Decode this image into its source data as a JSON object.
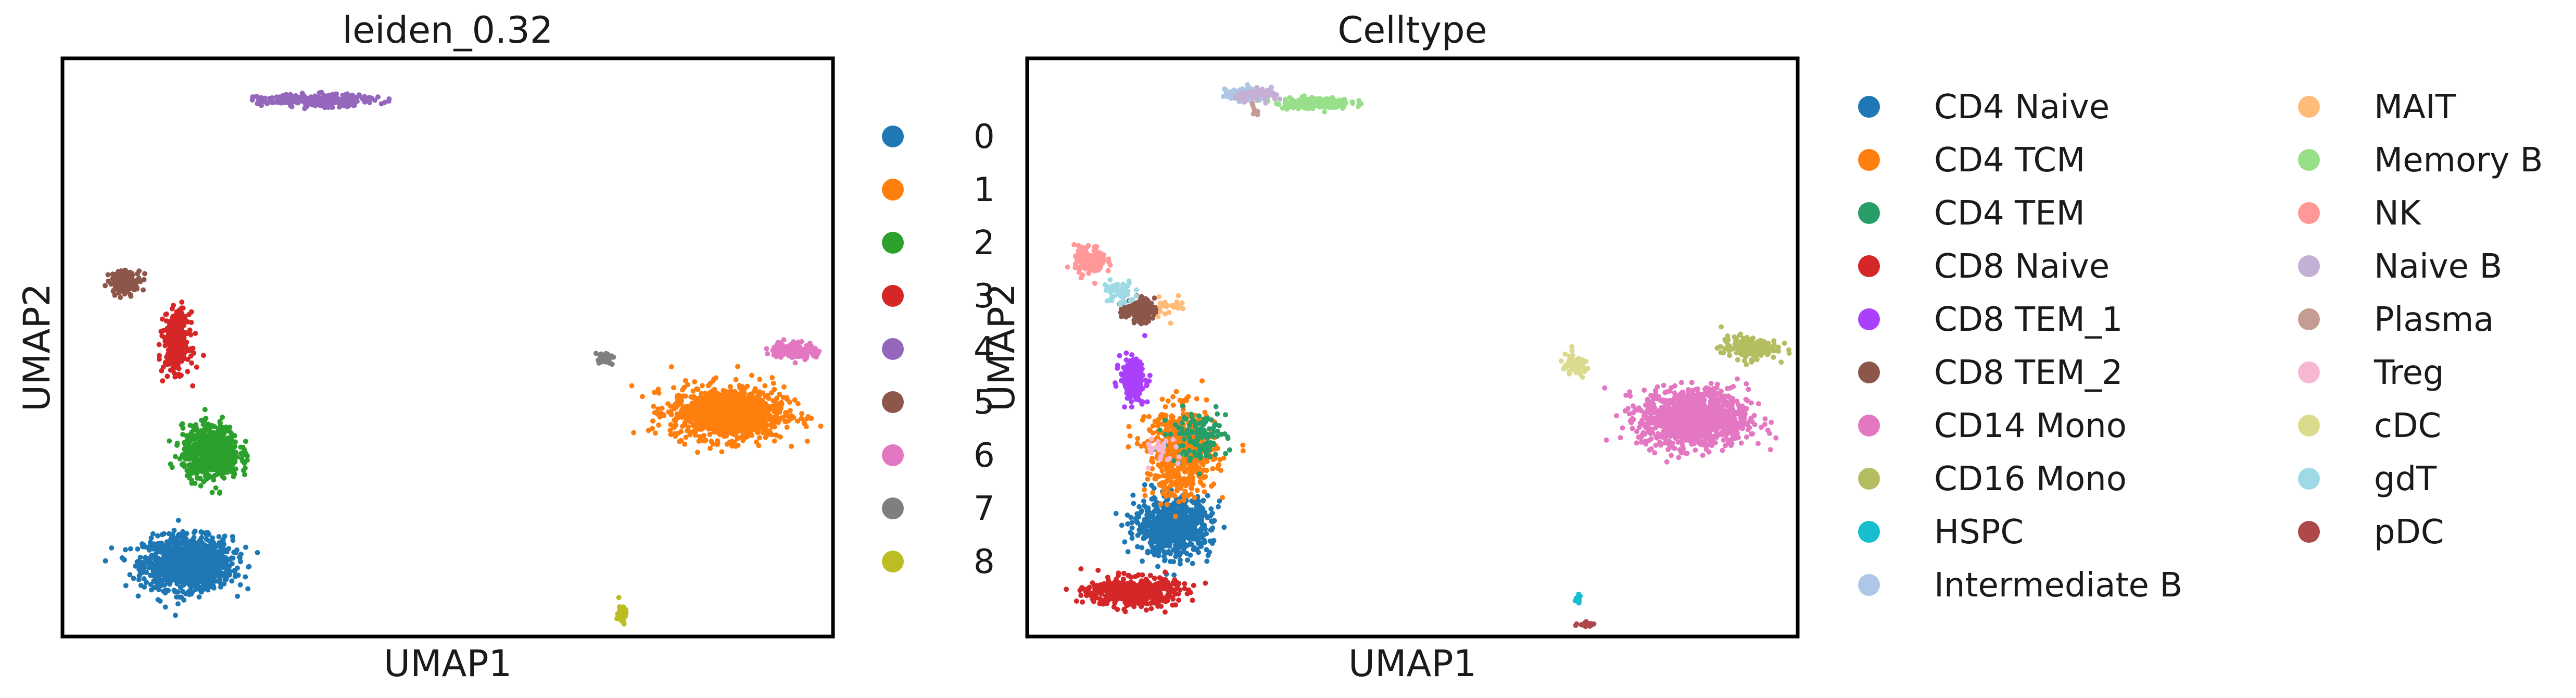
{
  "chart_data": [
    {
      "type": "scatter",
      "title": "leiden_0.32",
      "xlabel": "UMAP1",
      "ylabel": "UMAP2",
      "xlim": [
        -8,
        19
      ],
      "ylim": [
        -6,
        16
      ],
      "grid": false,
      "legend": "right",
      "series": [
        {
          "name": "0",
          "color": "#1f77b4",
          "center": [
            -3.6,
            -3.2
          ],
          "spread": [
            1.4,
            0.9
          ],
          "points": 1200
        },
        {
          "name": "1",
          "color": "#ff7f0e",
          "center": [
            15.3,
            2.5
          ],
          "spread": [
            1.8,
            0.9
          ],
          "points": 1100
        },
        {
          "name": "2",
          "color": "#2ca02c",
          "center": [
            -2.8,
            1.0
          ],
          "spread": [
            0.9,
            0.9
          ],
          "points": 700
        },
        {
          "name": "3",
          "color": "#d62728",
          "center": [
            -4.0,
            5.2
          ],
          "spread": [
            0.4,
            1.0
          ],
          "points": 350
        },
        {
          "name": "4",
          "color": "#9467bd",
          "center": [
            0.9,
            14.4
          ],
          "spread": [
            1.8,
            0.2
          ],
          "points": 300
        },
        {
          "name": "5",
          "color": "#8c564b",
          "center": [
            -5.8,
            7.5
          ],
          "spread": [
            0.5,
            0.4
          ],
          "points": 160
        },
        {
          "name": "6",
          "color": "#e377c2",
          "center": [
            17.6,
            4.9
          ],
          "spread": [
            0.7,
            0.3
          ],
          "points": 140
        },
        {
          "name": "7",
          "color": "#7f7f7f",
          "center": [
            11.0,
            4.6
          ],
          "spread": [
            0.3,
            0.2
          ],
          "points": 35
        },
        {
          "name": "8",
          "color": "#bcbd22",
          "center": [
            11.6,
            -5.1
          ],
          "spread": [
            0.15,
            0.35
          ],
          "points": 40
        }
      ]
    },
    {
      "type": "scatter",
      "title": "Celltype",
      "xlabel": "UMAP1",
      "ylabel": "UMAP2",
      "xlim": [
        -8,
        19
      ],
      "ylim": [
        -6,
        16
      ],
      "grid": false,
      "legend": "right",
      "series": [
        {
          "name": "CD4 Naive",
          "color": "#1f77b4",
          "center": [
            -2.9,
            -1.8
          ],
          "spread": [
            1.2,
            1.0
          ],
          "points": 700
        },
        {
          "name": "CD4 TCM",
          "color": "#ff7f0e",
          "center": [
            -2.6,
            1.0
          ],
          "spread": [
            1.1,
            1.5
          ],
          "points": 550
        },
        {
          "name": "CD4 TEM",
          "color": "#279e68",
          "center": [
            -2.0,
            1.6
          ],
          "spread": [
            0.9,
            0.9
          ],
          "points": 130
        },
        {
          "name": "CD8 Naive",
          "color": "#d62728",
          "center": [
            -4.3,
            -4.3
          ],
          "spread": [
            1.4,
            0.5
          ],
          "points": 500
        },
        {
          "name": "CD8 TEM_1",
          "color": "#aa40fc",
          "center": [
            -4.3,
            3.8
          ],
          "spread": [
            0.4,
            0.7
          ],
          "points": 200
        },
        {
          "name": "CD8 TEM_2",
          "color": "#8c564b",
          "center": [
            -4.1,
            6.4
          ],
          "spread": [
            0.5,
            0.4
          ],
          "points": 120
        },
        {
          "name": "CD14 Mono",
          "color": "#e377c2",
          "center": [
            15.4,
            2.3
          ],
          "spread": [
            1.7,
            1.0
          ],
          "points": 1100
        },
        {
          "name": "CD16 Mono",
          "color": "#b5bd61",
          "center": [
            17.3,
            5.0
          ],
          "spread": [
            0.9,
            0.4
          ],
          "points": 180
        },
        {
          "name": "HSPC",
          "color": "#17becf",
          "center": [
            11.3,
            -4.6
          ],
          "spread": [
            0.1,
            0.2
          ],
          "points": 8
        },
        {
          "name": "Intermediate B",
          "color": "#aec7e8",
          "center": [
            -0.4,
            14.6
          ],
          "spread": [
            0.6,
            0.2
          ],
          "points": 150
        },
        {
          "name": "MAIT",
          "color": "#ffbb78",
          "center": [
            -3.0,
            6.6
          ],
          "spread": [
            0.5,
            0.4
          ],
          "points": 25
        },
        {
          "name": "Memory B",
          "color": "#98df8a",
          "center": [
            2.0,
            14.3
          ],
          "spread": [
            1.2,
            0.2
          ],
          "points": 170
        },
        {
          "name": "NK",
          "color": "#ff9896",
          "center": [
            -5.8,
            8.3
          ],
          "spread": [
            0.5,
            0.5
          ],
          "points": 140
        },
        {
          "name": "Naive B",
          "color": "#c5b0d5",
          "center": [
            0.2,
            14.6
          ],
          "spread": [
            0.8,
            0.2
          ],
          "points": 60
        },
        {
          "name": "Plasma",
          "color": "#c49c94",
          "center": [
            0.0,
            14.0
          ],
          "spread": [
            0.3,
            0.2
          ],
          "points": 8
        },
        {
          "name": "Treg",
          "color": "#f7b6d2",
          "center": [
            -3.2,
            1.0
          ],
          "spread": [
            0.6,
            0.6
          ],
          "points": 25
        },
        {
          "name": "cDC",
          "color": "#dbdb8d",
          "center": [
            11.2,
            4.3
          ],
          "spread": [
            0.5,
            0.4
          ],
          "points": 60
        },
        {
          "name": "gdT",
          "color": "#9edae5",
          "center": [
            -4.8,
            7.1
          ],
          "spread": [
            0.5,
            0.4
          ],
          "points": 60
        },
        {
          "name": "pDC",
          "color": "#ad494a",
          "center": [
            11.6,
            -5.5
          ],
          "spread": [
            0.25,
            0.12
          ],
          "points": 30
        }
      ]
    }
  ]
}
